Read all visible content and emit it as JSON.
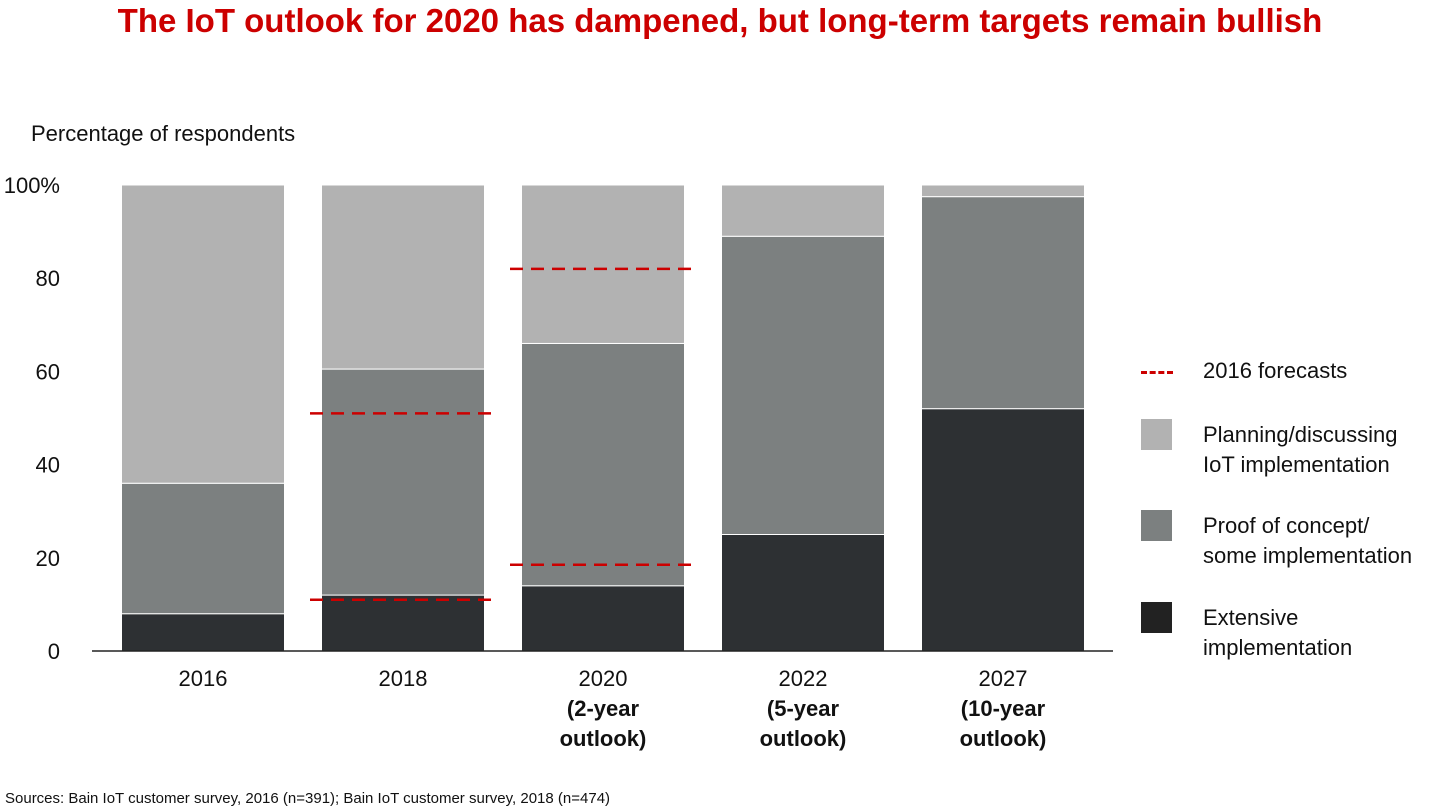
{
  "title": "The IoT outlook for 2020 has dampened, but long-term targets remain bullish",
  "source": "Sources: Bain IoT customer survey, 2016 (n=391); Bain IoT customer survey, 2018 (n=474)",
  "colors": {
    "title": "#cc0000",
    "planning": "#b2b2b2",
    "proof": "#7c8080",
    "extensive": "#2d3033",
    "forecast": "#cc0000"
  },
  "chart_data": {
    "type": "bar",
    "stacked": true,
    "ylabel": "Percentage of respondents",
    "ylim": [
      0,
      100
    ],
    "yticks": [
      "0",
      "20",
      "40",
      "60",
      "80",
      "100%"
    ],
    "ytick_values": [
      0,
      20,
      40,
      60,
      80,
      100
    ],
    "categories": [
      {
        "line1": "2016",
        "line2": "",
        "line3": ""
      },
      {
        "line1": "2018",
        "line2": "",
        "line3": ""
      },
      {
        "line1": "2020",
        "line2": "(2-year",
        "line3": "outlook)"
      },
      {
        "line1": "2022",
        "line2": "(5-year",
        "line3": "outlook)"
      },
      {
        "line1": "2027",
        "line2": "(10-year",
        "line3": "outlook)"
      }
    ],
    "series": [
      {
        "name": "Extensive implementation",
        "key": "extensive",
        "values": [
          8,
          12,
          14,
          25,
          52
        ]
      },
      {
        "name": "Proof of concept/ some implementation",
        "key": "proof",
        "values": [
          28,
          48.5,
          52,
          64,
          45.5
        ]
      },
      {
        "name": "Planning/discussing IoT implementation",
        "key": "planning",
        "values": [
          64,
          39.5,
          34,
          11,
          2.5
        ]
      }
    ],
    "forecasts_2016": [
      {
        "category_index": 1,
        "values": [
          11,
          51
        ]
      },
      {
        "category_index": 2,
        "values": [
          18.5,
          82
        ]
      }
    ],
    "legend": [
      {
        "type": "dash",
        "key": "forecast",
        "line1": "2016 forecasts",
        "line2": ""
      },
      {
        "type": "box",
        "key": "planning",
        "line1": "Planning/discussing",
        "line2": "IoT implementation"
      },
      {
        "type": "box",
        "key": "proof",
        "line1": "Proof of concept/",
        "line2": "some implementation"
      },
      {
        "type": "box",
        "key": "extensive",
        "line1": "Extensive",
        "line2": "implementation"
      }
    ],
    "legend_position": "right"
  }
}
